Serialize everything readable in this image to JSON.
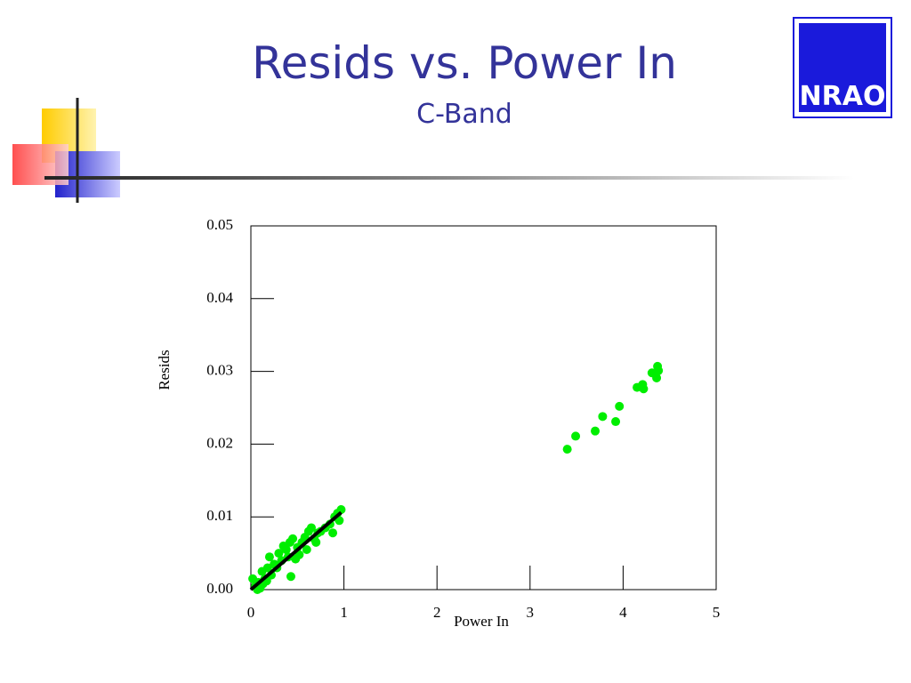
{
  "title": "Resids vs. Power In",
  "subtitle": "C-Band",
  "logo_text": "NRAO",
  "chart_data": {
    "type": "scatter",
    "x_label": "Power In",
    "y_label": "Resids",
    "xlim": [
      0,
      5
    ],
    "ylim": [
      0,
      0.05
    ],
    "xticks": [
      0,
      1,
      2,
      3,
      4,
      5
    ],
    "yticks": [
      {
        "value": 0,
        "label": "0.00"
      },
      0.01,
      0.02,
      0.03,
      0.04,
      0.05
    ],
    "points": {
      "color": "#00ee00",
      "x": [
        0.02,
        0.05,
        0.08,
        0.1,
        0.12,
        0.15,
        0.18,
        0.2,
        0.22,
        0.25,
        0.28,
        0.3,
        0.33,
        0.35,
        0.38,
        0.4,
        0.42,
        0.45,
        0.43,
        0.48,
        0.5,
        0.52,
        0.55,
        0.58,
        0.6,
        0.62,
        0.65,
        0.68,
        0.7,
        0.72,
        0.75,
        0.8,
        0.85,
        0.88,
        0.9,
        0.93,
        0.95,
        0.97,
        0.07,
        0.13,
        0.17,
        3.4,
        3.49,
        3.7,
        3.78,
        3.92,
        3.96,
        4.15,
        4.22,
        4.21,
        4.31,
        4.36,
        4.37,
        4.38
      ],
      "y": [
        0.0015,
        0.0005,
        0.001,
        0.0002,
        0.0025,
        0.0015,
        0.003,
        0.0045,
        0.002,
        0.0035,
        0.003,
        0.005,
        0.004,
        0.006,
        0.0055,
        0.0045,
        0.0065,
        0.007,
        0.0018,
        0.0042,
        0.0058,
        0.0048,
        0.0065,
        0.0072,
        0.0055,
        0.008,
        0.0085,
        0.007,
        0.0065,
        0.0078,
        0.008,
        0.0085,
        0.009,
        0.0078,
        0.01,
        0.0105,
        0.0095,
        0.011,
        0.0,
        0.0008,
        0.0012,
        0.0193,
        0.0211,
        0.0218,
        0.0238,
        0.0231,
        0.0252,
        0.0278,
        0.0276,
        0.0282,
        0.0298,
        0.0291,
        0.0307,
        0.0301
      ]
    },
    "fit": {
      "color": "#000000",
      "x": [
        0,
        0.97
      ],
      "y": [
        0,
        0.0106
      ]
    }
  }
}
